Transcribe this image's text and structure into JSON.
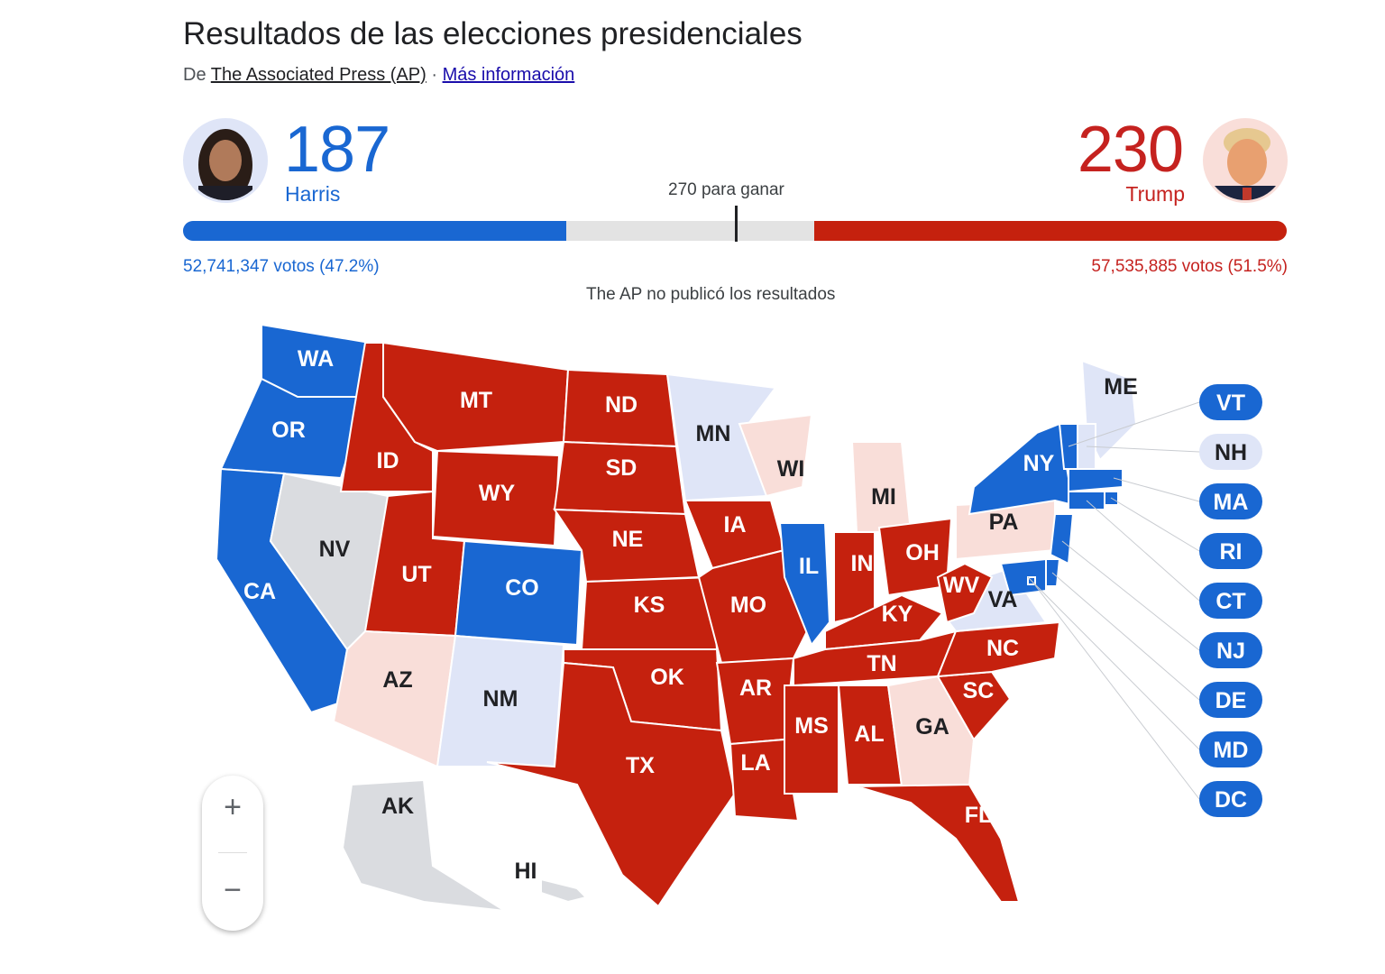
{
  "header": {
    "title": "Resultados de las elecciones presidenciales",
    "source_prefix": "De",
    "publisher": "The Associated Press (AP)",
    "separator": "·",
    "more_link": "Más información"
  },
  "candidates": [
    {
      "name": "Harris",
      "electoral_votes": 187,
      "popular_votes": "52,741,347 votos (47.2%)"
    },
    {
      "name": "Trump",
      "electoral_votes": 230,
      "popular_votes": "57,535,885 votos (51.5%)"
    }
  ],
  "goal": "270 para ganar",
  "note": "The AP no publicó los resultados",
  "map": {
    "states": [
      {
        "label": "WA",
        "color": "#1967d2"
      },
      {
        "label": "OR",
        "color": "#1967d2"
      },
      {
        "label": "CA",
        "color": "#1967d2"
      },
      {
        "label": "NV",
        "color": "#dadce0"
      },
      {
        "label": "ID",
        "color": "#c5210e"
      },
      {
        "label": "MT",
        "color": "#c5210e"
      },
      {
        "label": "WY",
        "color": "#c5210e"
      },
      {
        "label": "UT",
        "color": "#c5210e"
      },
      {
        "label": "CO",
        "color": "#1967d2"
      },
      {
        "label": "AZ",
        "color": "#f9ded9"
      },
      {
        "label": "NM",
        "color": "#dfe5f7"
      },
      {
        "label": "ND",
        "color": "#c5210e"
      },
      {
        "label": "SD",
        "color": "#c5210e"
      },
      {
        "label": "NE",
        "color": "#c5210e"
      },
      {
        "label": "KS",
        "color": "#c5210e"
      },
      {
        "label": "OK",
        "color": "#c5210e"
      },
      {
        "label": "TX",
        "color": "#c5210e"
      },
      {
        "label": "MN",
        "color": "#dfe5f7"
      },
      {
        "label": "IA",
        "color": "#c5210e"
      },
      {
        "label": "MO",
        "color": "#c5210e"
      },
      {
        "label": "AR",
        "color": "#c5210e"
      },
      {
        "label": "LA",
        "color": "#c5210e"
      },
      {
        "label": "WI",
        "color": "#f9ded9"
      },
      {
        "label": "IL",
        "color": "#1967d2"
      },
      {
        "label": "MI",
        "color": "#f9ded9"
      },
      {
        "label": "IN",
        "color": "#c5210e"
      },
      {
        "label": "OH",
        "color": "#c5210e"
      },
      {
        "label": "KY",
        "color": "#c5210e"
      },
      {
        "label": "TN",
        "color": "#c5210e"
      },
      {
        "label": "MS",
        "color": "#c5210e"
      },
      {
        "label": "AL",
        "color": "#c5210e"
      },
      {
        "label": "GA",
        "color": "#f9ded9"
      },
      {
        "label": "FL",
        "color": "#c5210e"
      },
      {
        "label": "SC",
        "color": "#c5210e"
      },
      {
        "label": "NC",
        "color": "#c5210e"
      },
      {
        "label": "VA",
        "color": "#dfe5f7"
      },
      {
        "label": "WV",
        "color": "#c5210e"
      },
      {
        "label": "PA",
        "color": "#f9ded9"
      },
      {
        "label": "NY",
        "color": "#1967d2"
      },
      {
        "label": "ME",
        "color": "#dfe5f7"
      },
      {
        "label": "AK",
        "color": "#dadce0"
      },
      {
        "label": "HI",
        "color": "#dadce0"
      },
      {
        "label": "VT",
        "color": "#1967d2"
      },
      {
        "label": "NH",
        "color": "#dfe5f7"
      },
      {
        "label": "MA",
        "color": "#1967d2"
      },
      {
        "label": "RI",
        "color": "#1967d2"
      },
      {
        "label": "CT",
        "color": "#1967d2"
      },
      {
        "label": "NJ",
        "color": "#1967d2"
      },
      {
        "label": "DE",
        "color": "#1967d2"
      },
      {
        "label": "MD",
        "color": "#1967d2"
      },
      {
        "label": "DC",
        "color": "#1967d2"
      }
    ]
  },
  "zoom": {
    "in": "+",
    "out": "−"
  }
}
